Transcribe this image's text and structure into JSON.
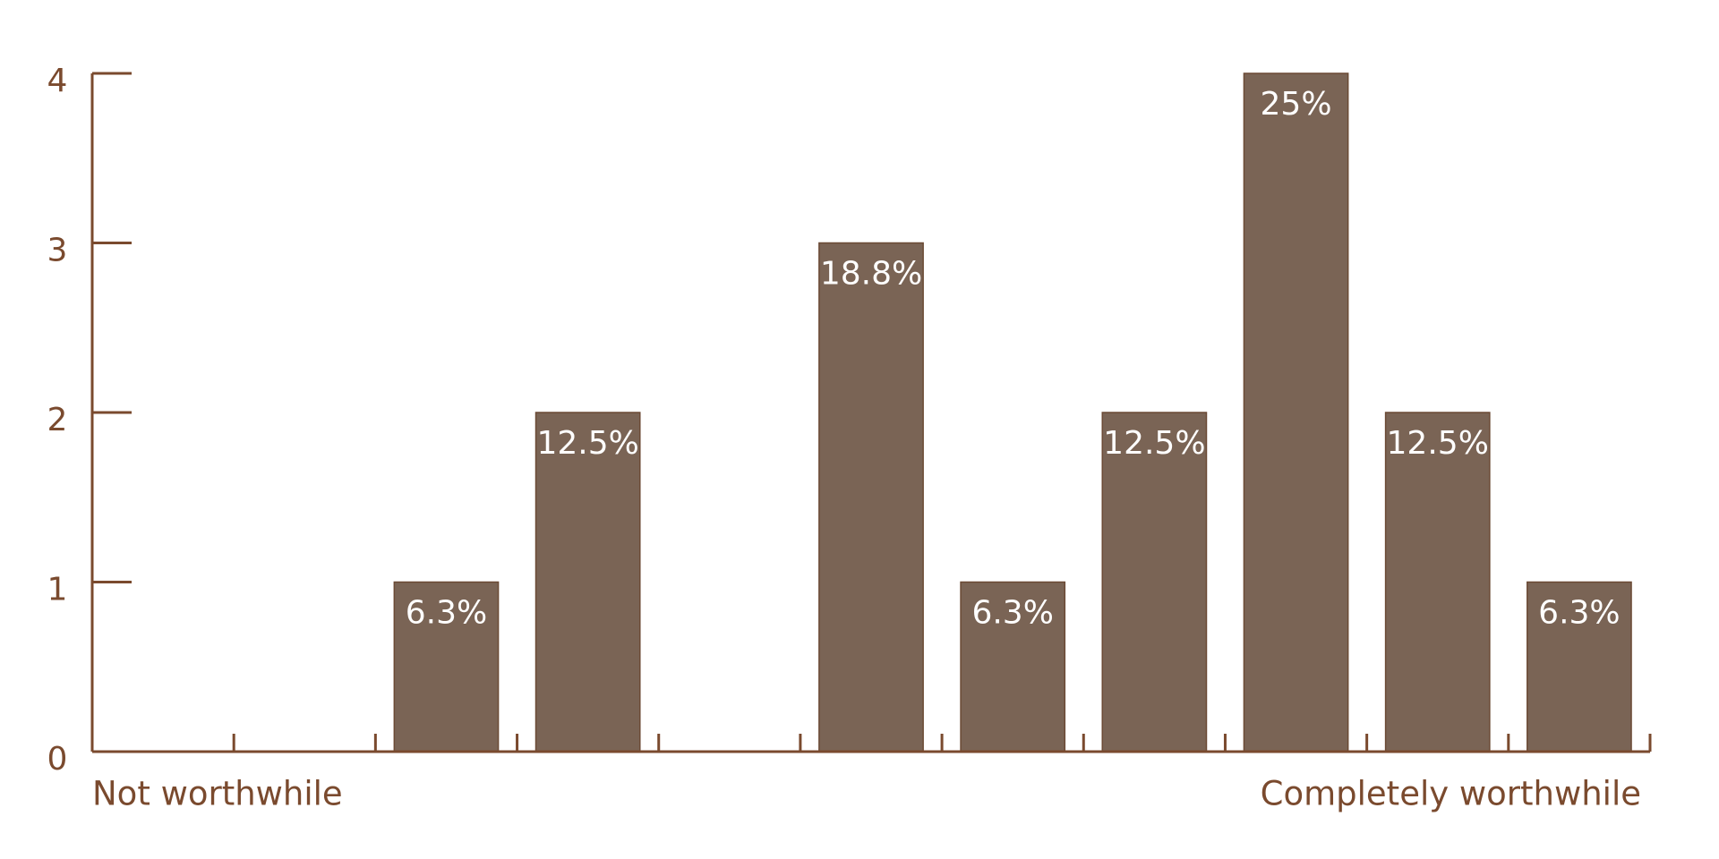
{
  "chart_data": {
    "type": "bar",
    "categories": [
      null,
      null,
      null,
      null,
      null,
      null,
      null,
      null,
      null,
      null,
      null
    ],
    "values": [
      0,
      0,
      1,
      2,
      0,
      3,
      1,
      2,
      4,
      2,
      1
    ],
    "value_labels": [
      null,
      null,
      "6.3%",
      "12.5%",
      null,
      "18.8%",
      "6.3%",
      "12.5%",
      "25%",
      "12.5%",
      "6.3%"
    ],
    "x_label_left": "Not worthwhile",
    "x_label_right": "Completely worthwhile",
    "color": "#7a6455",
    "axis_color": "#7a4a2e",
    "ylim": [
      0,
      4
    ],
    "yticks": [
      0,
      1,
      2,
      3,
      4
    ],
    "grid": false
  }
}
